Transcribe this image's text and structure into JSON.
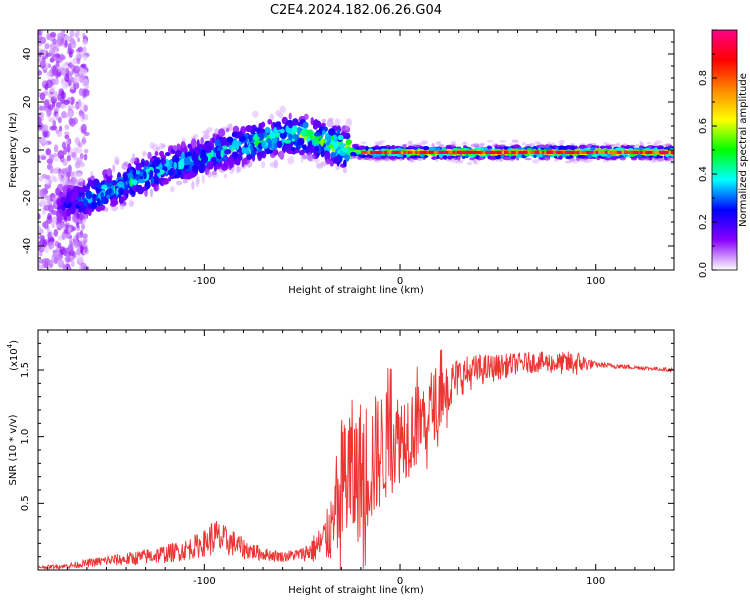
{
  "title": "C2E4.2024.182.06.26.G04",
  "chart_data": [
    {
      "type": "heatmap",
      "xlabel": "Height of straight line (km)",
      "ylabel": "Frequency (Hz)",
      "xlim": [
        -185,
        140
      ],
      "ylim": [
        -50,
        50
      ],
      "xticks": [
        -100,
        0,
        100
      ],
      "yticks": [
        -40,
        -20,
        0,
        20,
        40
      ],
      "colorbar": {
        "label": "Normalized spectral amplitude",
        "range": [
          0,
          1
        ],
        "ticks": [
          0.0,
          0.2,
          0.4,
          0.6,
          0.8
        ],
        "tick_labels": [
          "0.0",
          "0.2",
          "0.4",
          "0.6",
          "0.8"
        ],
        "colormap": [
          "#ffffff",
          "#8800ff",
          "#0000ff",
          "#00ffff",
          "#00ff00",
          "#ffff00",
          "#ff8800",
          "#ff0000",
          "#ff0088"
        ]
      },
      "ridge": {
        "x": [
          -180,
          -170,
          -160,
          -150,
          -140,
          -130,
          -120,
          -110,
          -100,
          -90,
          -80,
          -70,
          -60,
          -50,
          -40,
          -30,
          -20,
          -10,
          0,
          10,
          20,
          40,
          60,
          80,
          100,
          120,
          140
        ],
        "frequency": [
          -25,
          -22,
          -20,
          -17,
          -14,
          -10,
          -7,
          -5,
          -3,
          0,
          2,
          4,
          6,
          6,
          4,
          1,
          -1,
          -1,
          -1,
          -1,
          -1,
          -1,
          -1,
          -1,
          -1,
          -1,
          -1
        ],
        "amplitude": [
          0.1,
          0.15,
          0.25,
          0.3,
          0.3,
          0.3,
          0.3,
          0.3,
          0.3,
          0.3,
          0.3,
          0.35,
          0.35,
          0.4,
          0.4,
          0.5,
          0.6,
          0.7,
          0.75,
          0.8,
          0.85,
          0.85,
          0.85,
          0.85,
          0.85,
          0.85,
          0.85
        ]
      }
    },
    {
      "type": "line",
      "xlabel": "Height of straight line (km)",
      "ylabel": "SNR (10 * v/v)",
      "y_multiplier_label": "(x10",
      "y_multiplier_exp": "4",
      "y_multiplier_close": ")",
      "xlim": [
        -185,
        140
      ],
      "ylim": [
        0,
        1.8
      ],
      "xticks": [
        -100,
        0,
        100
      ],
      "yticks": [
        0.5,
        1.0,
        1.5
      ],
      "ytick_labels": [
        "0.5",
        "1.0",
        "1.5"
      ],
      "color": "#ee3333",
      "series": [
        {
          "name": "SNR",
          "x": [
            -185,
            -170,
            -160,
            -150,
            -140,
            -130,
            -120,
            -110,
            -100,
            -95,
            -90,
            -85,
            -80,
            -70,
            -60,
            -50,
            -45,
            -40,
            -35,
            -30,
            -28,
            -25,
            -22,
            -20,
            -15,
            -10,
            -5,
            0,
            5,
            10,
            15,
            20,
            30,
            40,
            50,
            60,
            70,
            80,
            90,
            95,
            100,
            110,
            120,
            130,
            140
          ],
          "y": [
            0.02,
            0.03,
            0.05,
            0.07,
            0.08,
            0.1,
            0.12,
            0.15,
            0.2,
            0.25,
            0.22,
            0.2,
            0.16,
            0.12,
            0.1,
            0.12,
            0.15,
            0.2,
            0.3,
            0.5,
            0.75,
            0.7,
            0.7,
            0.75,
            0.8,
            0.9,
            0.95,
            1.0,
            1.05,
            1.1,
            1.2,
            1.3,
            1.45,
            1.5,
            1.52,
            1.55,
            1.56,
            1.55,
            1.55,
            1.55,
            1.54,
            1.53,
            1.52,
            1.51,
            1.5
          ],
          "noise": [
            0.01,
            0.02,
            0.03,
            0.04,
            0.05,
            0.06,
            0.07,
            0.08,
            0.1,
            0.15,
            0.12,
            0.1,
            0.08,
            0.05,
            0.04,
            0.05,
            0.1,
            0.15,
            0.25,
            0.4,
            0.6,
            0.6,
            0.5,
            0.55,
            0.5,
            0.45,
            0.4,
            0.35,
            0.35,
            0.3,
            0.3,
            0.25,
            0.15,
            0.12,
            0.1,
            0.08,
            0.08,
            0.08,
            0.1,
            0.06,
            0.02,
            0.02,
            0.015,
            0.015,
            0.015
          ]
        }
      ]
    }
  ]
}
